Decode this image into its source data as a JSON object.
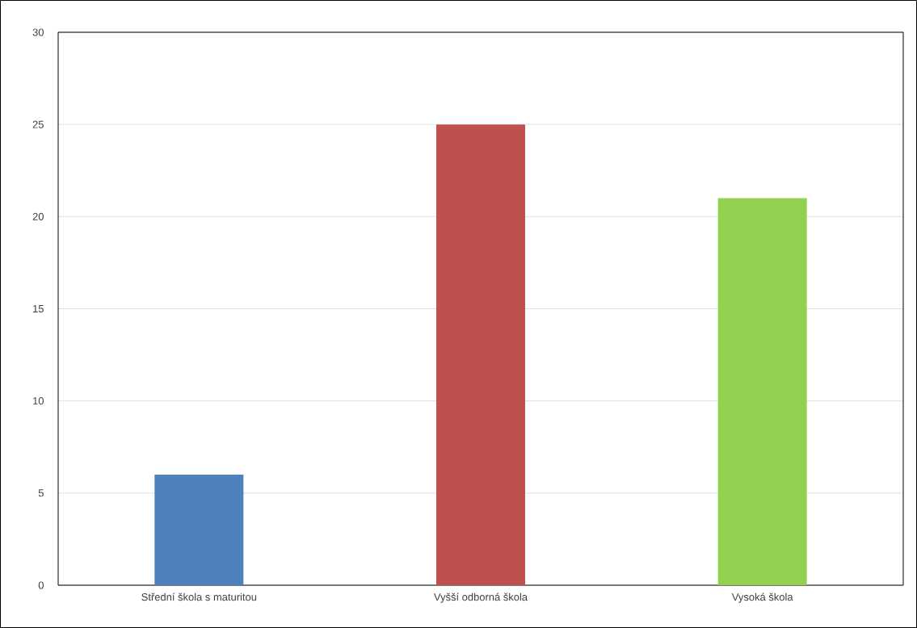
{
  "chart_data": {
    "type": "bar",
    "categories": [
      "Střední škola s maturitou",
      "Vyšší odborná škola",
      "Vysoká škola"
    ],
    "values": [
      6,
      25,
      21
    ],
    "colors": [
      "#4f81bd",
      "#c0504d",
      "#92d050"
    ],
    "ylim": [
      0,
      30
    ],
    "yticks": [
      0,
      5,
      10,
      15,
      20,
      25,
      30
    ],
    "grid": "y"
  }
}
